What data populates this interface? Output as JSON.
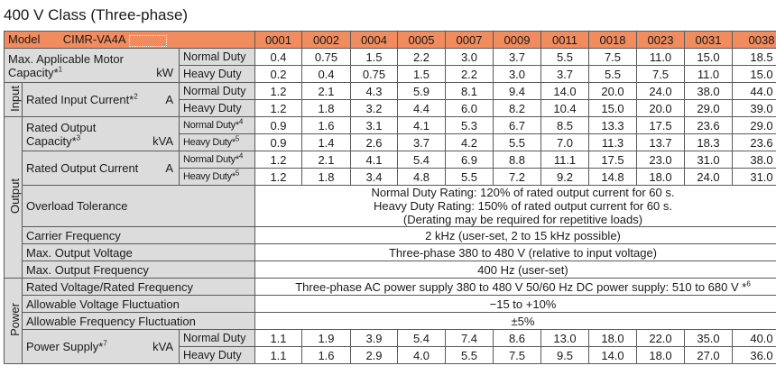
{
  "title": "400 V Class (Three-phase)",
  "header": {
    "model_label": "Model",
    "model_value": "CIMR-VA4A",
    "models": [
      "0001",
      "0002",
      "0004",
      "0005",
      "0007",
      "0009",
      "0011",
      "0018",
      "0023",
      "0031",
      "0038"
    ]
  },
  "groups": {
    "input": "Input",
    "output": "Output",
    "power": "Power"
  },
  "duty": {
    "normal": "Normal Duty",
    "heavy": "Heavy Duty"
  },
  "rows": {
    "motor": {
      "label1": "Max. Applicable Motor",
      "label2": "Capacity*",
      "note": "1",
      "unit": "kW",
      "normal": [
        "0.4",
        "0.75",
        "1.5",
        "2.2",
        "3.0",
        "3.7",
        "5.5",
        "7.5",
        "11.0",
        "15.0",
        "18.5"
      ],
      "heavy": [
        "0.2",
        "0.4",
        "0.75",
        "1.5",
        "2.2",
        "3.0",
        "3.7",
        "5.5",
        "7.5",
        "11.0",
        "15.0"
      ]
    },
    "input_current": {
      "label": "Rated Input Current*",
      "note": "2",
      "unit": "A",
      "normal": [
        "1.2",
        "2.1",
        "4.3",
        "5.9",
        "8.1",
        "9.4",
        "14.0",
        "20.0",
        "24.0",
        "38.0",
        "44.0"
      ],
      "heavy": [
        "1.2",
        "1.8",
        "3.2",
        "4.4",
        "6.0",
        "8.2",
        "10.4",
        "15.0",
        "20.0",
        "29.0",
        "39.0"
      ]
    },
    "output_capacity": {
      "label1": "Rated Output",
      "label2": "Capacity*",
      "note": "3",
      "unit": "kVA",
      "normal_label": "Normal Duty*",
      "normal_note": "4",
      "heavy_label": "Heavy Duty*",
      "heavy_note": "5",
      "normal": [
        "0.9",
        "1.6",
        "3.1",
        "4.1",
        "5.3",
        "6.7",
        "8.5",
        "13.3",
        "17.5",
        "23.6",
        "29.0"
      ],
      "heavy": [
        "0.9",
        "1.4",
        "2.6",
        "3.7",
        "4.2",
        "5.5",
        "7.0",
        "11.3",
        "13.7",
        "18.3",
        "23.6"
      ]
    },
    "output_current": {
      "label": "Rated Output Current",
      "unit": "A",
      "normal_label": "Normal Duty*",
      "normal_note": "4",
      "heavy_label": "Heavy Duty*",
      "heavy_note": "5",
      "normal": [
        "1.2",
        "2.1",
        "4.1",
        "5.4",
        "6.9",
        "8.8",
        "11.1",
        "17.5",
        "23.0",
        "31.0",
        "38.0"
      ],
      "heavy": [
        "1.2",
        "1.8",
        "3.4",
        "4.8",
        "5.5",
        "7.2",
        "9.2",
        "14.8",
        "18.0",
        "24.0",
        "31.0"
      ]
    },
    "overload": {
      "label": "Overload Tolerance",
      "line1": "Normal Duty Rating: 120% of rated output current for 60 s.",
      "line2": "Heavy Duty Rating: 150% of rated output current for 60 s.",
      "line3": "(Derating may be required for repetitive loads)"
    },
    "carrier": {
      "label": "Carrier Frequency",
      "value": "2 kHz (user-set, 2 to 15 kHz possible)"
    },
    "max_voltage": {
      "label": "Max. Output Voltage",
      "value": "Three-phase 380 to 480 V (relative to input voltage)"
    },
    "max_freq": {
      "label": "Max. Output Frequency",
      "value": "400 Hz (user-set)"
    },
    "rated_voltage": {
      "label": "Rated Voltage/Rated Frequency",
      "value": "Three-phase AC power supply 380 to 480 V  50/60 Hz   DC power supply: 510 to 680 V *",
      "note": "6"
    },
    "voltage_fluct": {
      "label": "Allowable Voltage Fluctuation",
      "value": "−15 to +10%"
    },
    "freq_fluct": {
      "label": "Allowable Frequency Fluctuation",
      "value": "±5%"
    },
    "power_supply": {
      "label": "Power Supply*",
      "note": "7",
      "unit": "kVA",
      "normal": [
        "1.1",
        "1.9",
        "3.9",
        "5.4",
        "7.4",
        "8.6",
        "13.0",
        "18.0",
        "22.0",
        "35.0",
        "40.0"
      ],
      "heavy": [
        "1.1",
        "1.6",
        "2.9",
        "4.0",
        "5.5",
        "7.5",
        "9.5",
        "14.0",
        "18.0",
        "27.0",
        "36.0"
      ]
    }
  }
}
